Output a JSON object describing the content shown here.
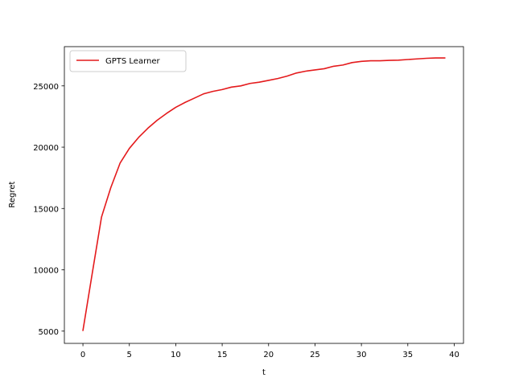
{
  "chart_data": {
    "type": "line",
    "title": "",
    "xlabel": "t",
    "ylabel": "Regret",
    "xlim": [
      -2,
      41
    ],
    "ylim": [
      4000,
      28200
    ],
    "xticks": [
      0,
      5,
      10,
      15,
      20,
      25,
      30,
      35,
      40
    ],
    "yticks": [
      5000,
      10000,
      15000,
      20000,
      25000
    ],
    "grid": false,
    "legend_position": "upper-left",
    "series": [
      {
        "name": "GPTS Learner",
        "color": "#e41a1c",
        "x": [
          0,
          1,
          2,
          3,
          4,
          5,
          6,
          7,
          8,
          9,
          10,
          11,
          12,
          13,
          14,
          15,
          16,
          17,
          18,
          19,
          20,
          21,
          22,
          23,
          24,
          25,
          26,
          27,
          28,
          29,
          30,
          31,
          32,
          33,
          34,
          35,
          36,
          37,
          38,
          39
        ],
        "values": [
          5050,
          9700,
          14300,
          16700,
          18700,
          19900,
          20800,
          21550,
          22200,
          22750,
          23250,
          23650,
          24000,
          24350,
          24550,
          24700,
          24900,
          25000,
          25200,
          25300,
          25450,
          25600,
          25800,
          26050,
          26200,
          26300,
          26400,
          26600,
          26700,
          26900,
          27000,
          27050,
          27050,
          27080,
          27100,
          27150,
          27200,
          27250,
          27280,
          27280
        ]
      }
    ]
  }
}
